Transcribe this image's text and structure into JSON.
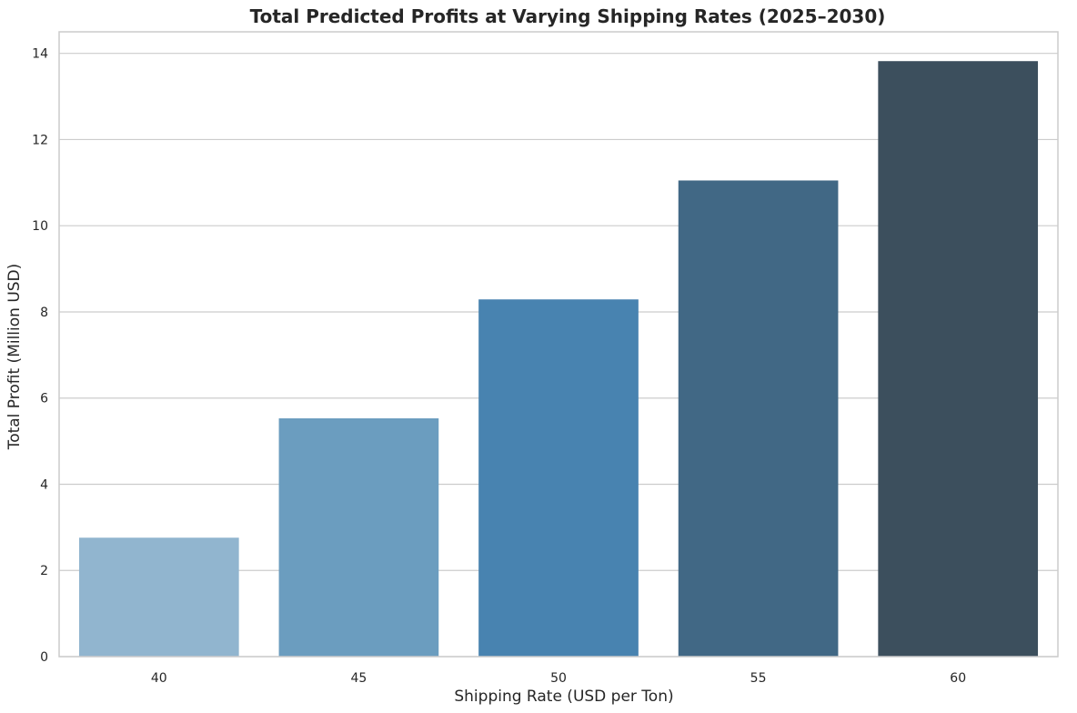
{
  "chart_data": {
    "type": "bar",
    "title": "Total Predicted Profits at Varying Shipping Rates (2025–2030)",
    "xlabel": "Shipping Rate (USD per Ton)",
    "ylabel": "Total Profit (Million USD)",
    "categories": [
      "40",
      "45",
      "50",
      "55",
      "60"
    ],
    "values": [
      2.76,
      5.53,
      8.29,
      11.05,
      13.82
    ],
    "ylim": [
      0,
      14.5
    ],
    "yticks": [
      0,
      2,
      4,
      6,
      8,
      10,
      12,
      14
    ],
    "grid": "horizontal",
    "colors": [
      "#91b5cf",
      "#6b9dbf",
      "#4883b0",
      "#416885",
      "#3c4f5d"
    ]
  }
}
